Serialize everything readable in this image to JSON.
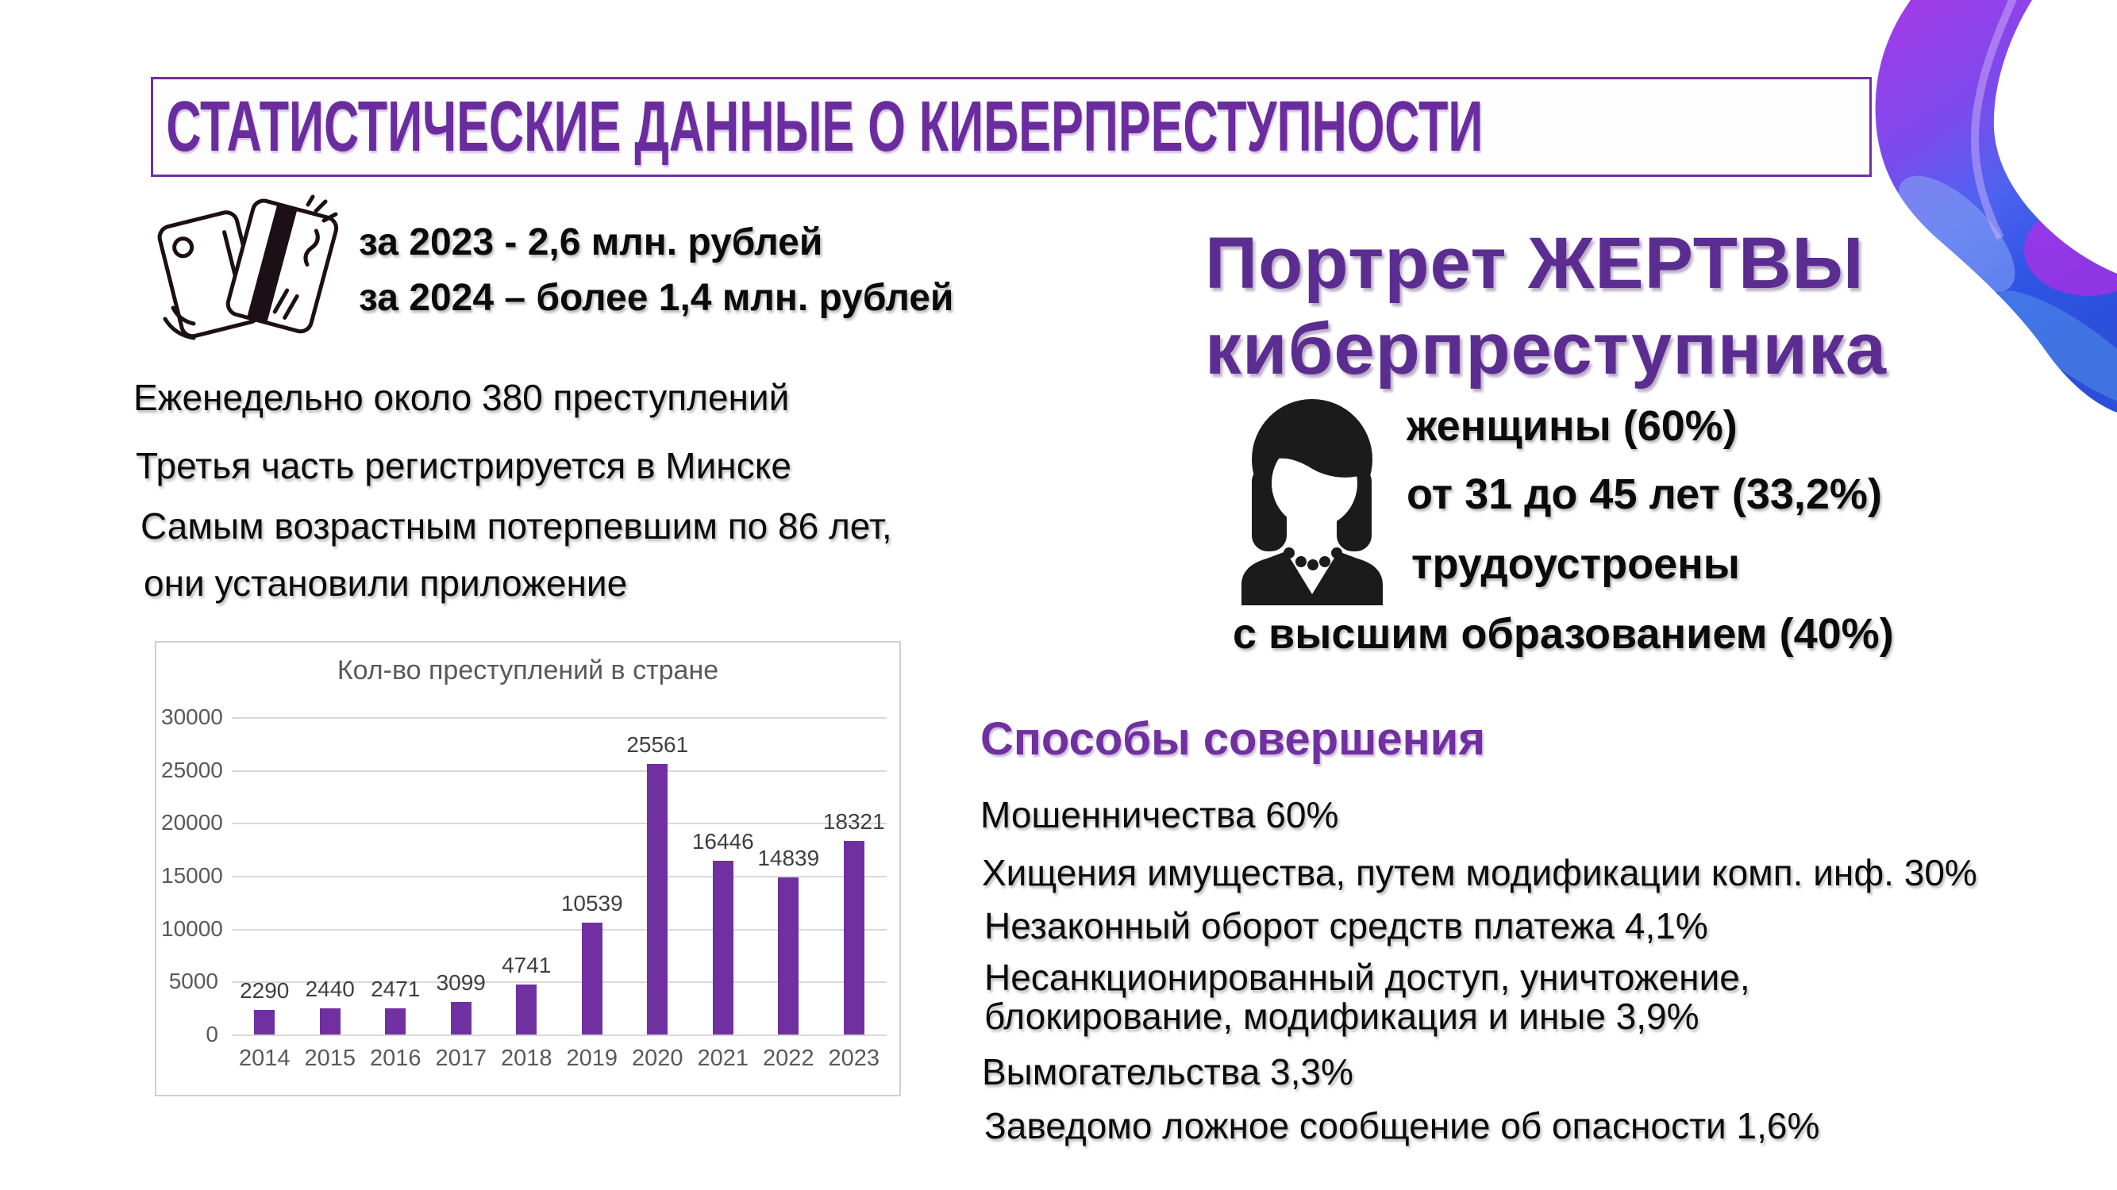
{
  "title": "СТАТИСТИЧЕСКИЕ ДАННЫЕ О КИБЕРПРЕСТУПНОСТИ",
  "damages": {
    "line1": "за 2023 - 2,6 млн. рублей",
    "line2": "за 2024 – более 1,4 млн. рублей"
  },
  "facts": [
    "Еженедельно около 380 преступлений",
    "Третья часть регистрируется в Минске",
    "Самым возрастным потерпевшим по 86 лет,",
    "они установили приложение"
  ],
  "chart_data": {
    "type": "bar",
    "title": "Кол-во преступлений в стране",
    "categories": [
      "2014",
      "2015",
      "2016",
      "2017",
      "2018",
      "2019",
      "2020",
      "2021",
      "2022",
      "2023"
    ],
    "values": [
      2290,
      2440,
      2471,
      3099,
      4741,
      10539,
      25561,
      16446,
      14839,
      18321
    ],
    "xlabel": "",
    "ylabel": "",
    "ylim": [
      0,
      30000
    ],
    "ytick_step": 5000,
    "grid": true,
    "legend": "none",
    "bar_color": "#7030A0",
    "grid_color": "#D9D9D9",
    "axis_text_color": "#595959",
    "value_label_color": "#3f3f3f"
  },
  "victim": {
    "heading_line1": "Портрет ЖЕРТВЫ",
    "heading_line2": "киберпреступника",
    "traits": [
      "женщины (60%)",
      "от 31 до 45 лет (33,2%)",
      "трудоустроены"
    ],
    "trait_wide": "с высшим образованием (40%)"
  },
  "methods": {
    "heading": "Способы совершения",
    "items": [
      "Мошенничества 60%",
      "Хищения имущества, путем модификации комп. инф. 30%",
      "Незаконный оборот средств платежа 4,1%",
      "Несанкционированный доступ, уничтожение,\nблокирование, модификация и иные 3,9%",
      "Вымогательства 3,3%",
      "Заведомо ложное сообщение об опасности 1,6%"
    ]
  },
  "icons": {
    "cards": "bank-cards-icon",
    "woman": "woman-silhouette-icon",
    "ribbon": "gradient-ribbon-decoration"
  },
  "colors": {
    "accent_purple": "#7030A0",
    "heading_purple": "#5C2D90",
    "title_purple": "#6A2C9E",
    "body_text": "#0b0b0b",
    "ribbon_blue": "#2B4FD9",
    "ribbon_violet": "#A03BE8",
    "ribbon_magenta": "#E01FE8"
  }
}
